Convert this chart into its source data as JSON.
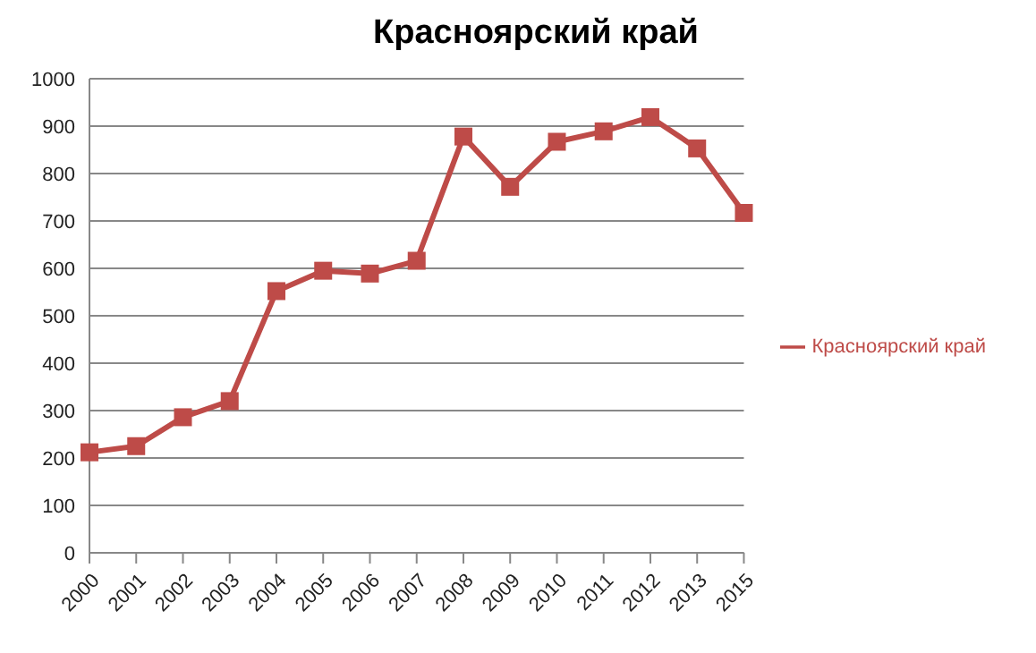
{
  "chart_data": {
    "type": "line",
    "title": "Красноярский край",
    "categories": [
      "2000",
      "2001",
      "2002",
      "2003",
      "2004",
      "2005",
      "2006",
      "2007",
      "2008",
      "2009",
      "2010",
      "2011",
      "2012",
      "2013",
      "2015"
    ],
    "series": [
      {
        "name": "Красноярский край",
        "color": "#be4b48",
        "values": [
          212,
          225,
          286,
          320,
          552,
          595,
          589,
          616,
          878,
          772,
          867,
          889,
          919,
          853,
          717
        ]
      }
    ],
    "ylim": [
      0,
      1000
    ],
    "yticks": [
      0,
      100,
      200,
      300,
      400,
      500,
      600,
      700,
      800,
      900,
      1000
    ],
    "grid": "y",
    "legend": "right",
    "marker": "square",
    "line_style": "solid"
  }
}
